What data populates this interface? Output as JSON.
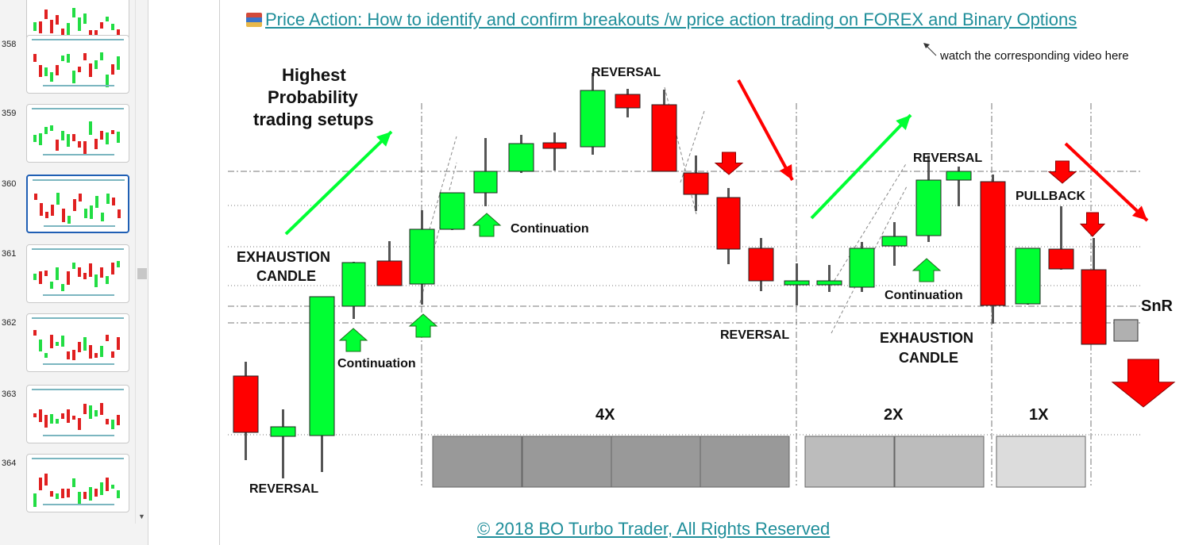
{
  "sidebar": {
    "slides": [
      {
        "number": ""
      },
      {
        "number": "358"
      },
      {
        "number": "359"
      },
      {
        "number": "360",
        "selected": true
      },
      {
        "number": "361"
      },
      {
        "number": "362"
      },
      {
        "number": "363"
      },
      {
        "number": "364"
      }
    ]
  },
  "slide": {
    "title": "Price Action: How to identify and confirm breakouts /w price action trading on FOREX and Binary Options",
    "video_note": "watch the corresponding  video  here",
    "headline": [
      "Highest",
      "Probability",
      "trading setups"
    ],
    "labels": {
      "reversal_top": "REVERSAL",
      "reversal_mid": "REVERSAL",
      "reversal_bottom": "REVERSAL",
      "reversal_right": "REVERSAL",
      "exhaustion_left": [
        "EXHAUSTION",
        "CANDLE"
      ],
      "exhaustion_right": [
        "EXHAUSTION",
        "CANDLE"
      ],
      "continuation_1": "Continuation",
      "continuation_2": "Continuation",
      "continuation_3": "Continuation",
      "pullback": "PULLBACK",
      "snr": "SnR",
      "mult_4x": "4X",
      "mult_2x": "2X",
      "mult_1x": "1X"
    },
    "footer": "© 2018 BO Turbo Trader, All Rights Reserved",
    "colors": {
      "bull": "#00ff33",
      "bear": "#ff0000",
      "link": "#1f8e9a",
      "wick": "#555555"
    }
  }
}
